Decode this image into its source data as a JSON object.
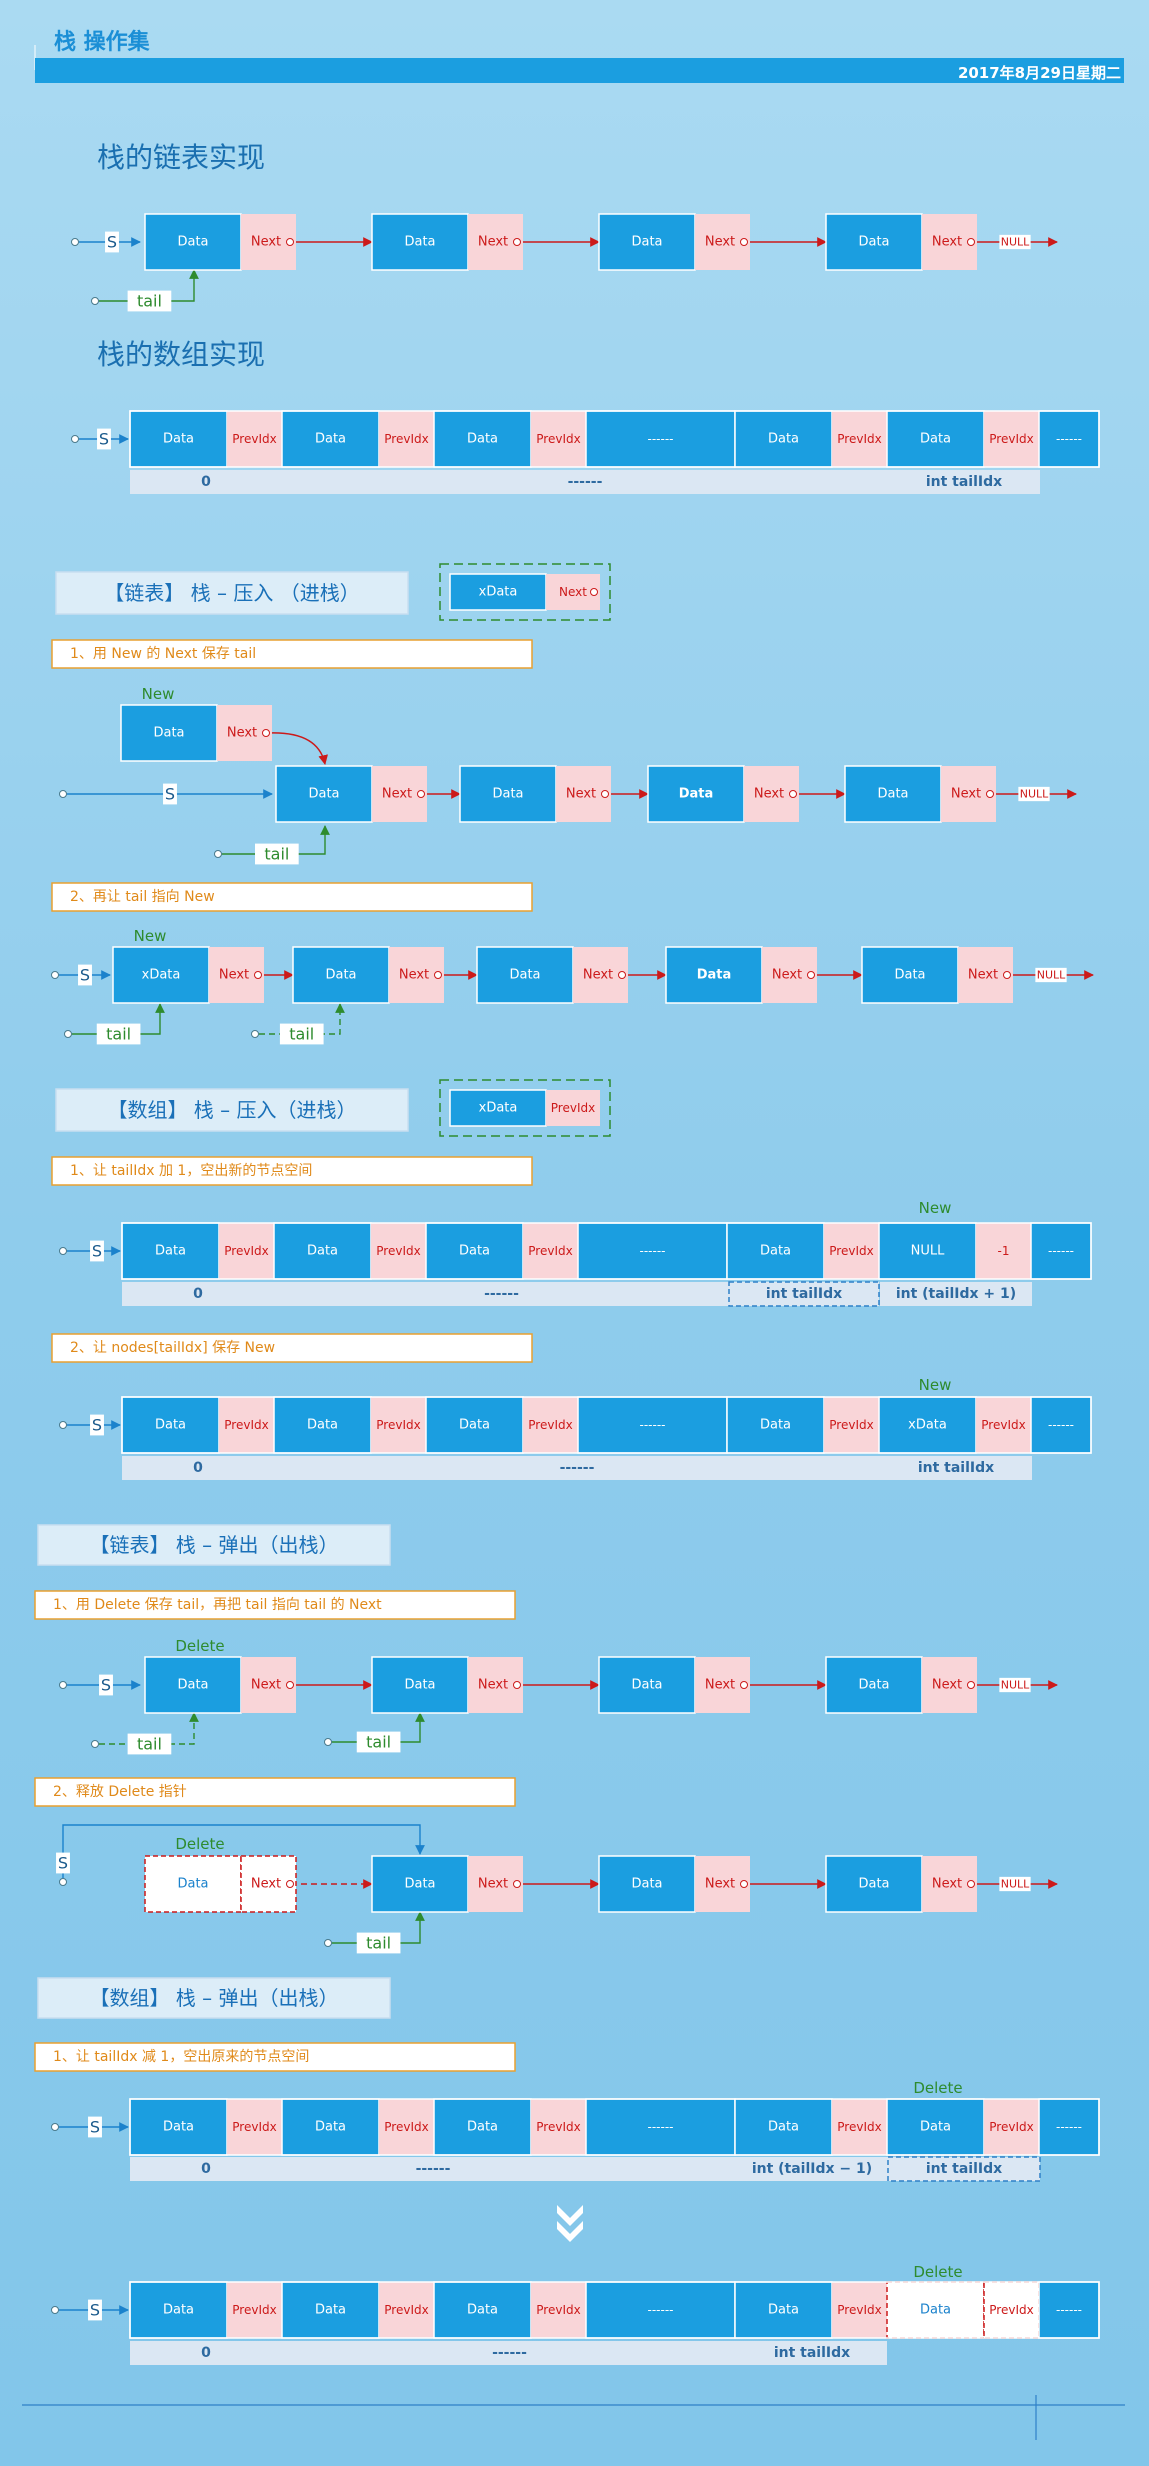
{
  "header": {
    "title": "栈 操作集",
    "date": "2017年8月29日星期二"
  },
  "common": {
    "data": "Data",
    "next": "Next",
    "previdx": "PrevIdx",
    "xdata": "xData",
    "null": "NULL",
    "dashes": "------",
    "s": "S",
    "tail": "tail",
    "new": "New",
    "delete": "Delete",
    "idx0": "0",
    "tailidx": "int tailIdx",
    "tailidx_plus": "int (tailIdx + 1)",
    "tailidx_minus": "int (tailIdx  −  1)",
    "minus_one": "-1"
  },
  "sections": {
    "linked_title": "栈的链表实现",
    "array_title": "栈的数组实现",
    "push_linked": "【链表】 栈  –  压入 （进栈）",
    "push_array": "【数组】 栈  –  压入（进栈）",
    "pop_linked": "【链表】 栈  –  弹出（出栈）",
    "pop_array": "【数组】 栈  –  弹出（出栈）"
  },
  "steps": {
    "push_linked_1": "1、用 New 的 Next 保存 tail",
    "push_linked_2": "2、再让 tail 指向 New",
    "push_array_1": "1、让 tailIdx 加 1，空出新的节点空间",
    "push_array_2": "2、让 nodes[tailIdx] 保存 New",
    "pop_linked_1": "1、用 Delete 保存 tail，再把 tail 指向 tail 的 Next",
    "pop_linked_2": "2、释放 Delete 指针",
    "pop_array_1": "1、让 tailIdx 减 1，空出原来的节点空间"
  },
  "colors": {
    "data_fill": "#1b9ee0",
    "next_fill": "#f9d5d8",
    "accent_red": "#cc1a1a",
    "accent_green": "#2e8b2e",
    "title_blue": "#1a6fb0",
    "step_orange": "#e08a1a",
    "index_fill": "#dbe7f3",
    "index_text": "#2e6aa0"
  }
}
